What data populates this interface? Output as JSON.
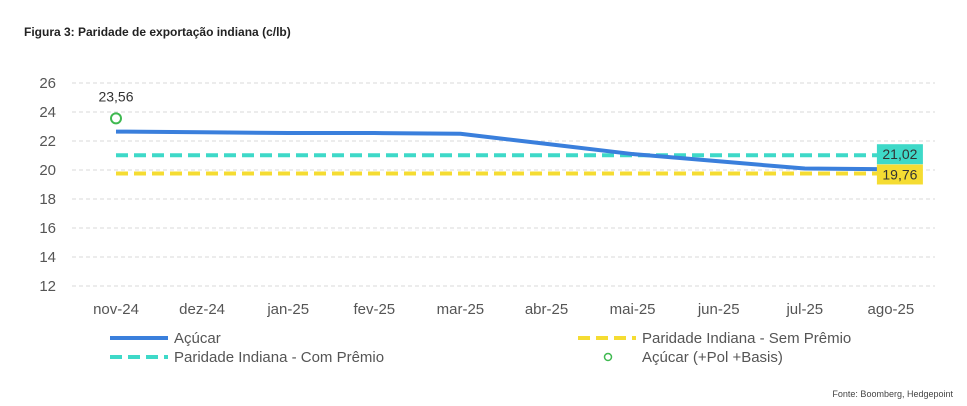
{
  "figure": {
    "title": "Figura 3: Paridade de exportação indiana (c/lb)",
    "source": "Fonte: Boomberg, Hedgepoint"
  },
  "chart_data": {
    "type": "line",
    "categories": [
      "nov-24",
      "dez-24",
      "jan-25",
      "fev-25",
      "mar-25",
      "abr-25",
      "mai-25",
      "jun-25",
      "jul-25",
      "ago-25"
    ],
    "ylim": [
      12,
      26
    ],
    "yticks": [
      12,
      14,
      16,
      18,
      20,
      22,
      24,
      26
    ],
    "grid": true,
    "legend_position": "bottom",
    "series": [
      {
        "name": "Açúcar",
        "color": "#3a7fdc",
        "style": "solid",
        "values": [
          22.65,
          22.6,
          22.55,
          22.55,
          22.5,
          21.8,
          21.1,
          20.6,
          20.1,
          20.05
        ]
      },
      {
        "name": "Paridade Indiana - Sem Prêmio",
        "color": "#f5dc32",
        "style": "dashed",
        "values": [
          19.76,
          19.76,
          19.76,
          19.76,
          19.76,
          19.76,
          19.76,
          19.76,
          19.76,
          19.76
        ]
      },
      {
        "name": "Paridade Indiana - Com Prêmio",
        "color": "#3ed9c8",
        "style": "dashed",
        "values": [
          21.02,
          21.02,
          21.02,
          21.02,
          21.02,
          21.02,
          21.02,
          21.02,
          21.02,
          21.02
        ]
      },
      {
        "name": "Açúcar (+Pol +Basis)",
        "color": "#3fb950",
        "style": "marker",
        "values": [
          23.56,
          null,
          null,
          null,
          null,
          null,
          null,
          null,
          null,
          null
        ]
      }
    ],
    "annotations": [
      {
        "text": "23,56",
        "series": "Açúcar (+Pol +Basis)",
        "index": 0
      },
      {
        "text": "21,02",
        "series": "Paridade Indiana - Com Prêmio",
        "index": 9,
        "bg": "#3ed9c8"
      },
      {
        "text": "19,76",
        "series": "Paridade Indiana - Sem Prêmio",
        "index": 9,
        "bg": "#f5dc32"
      }
    ]
  }
}
